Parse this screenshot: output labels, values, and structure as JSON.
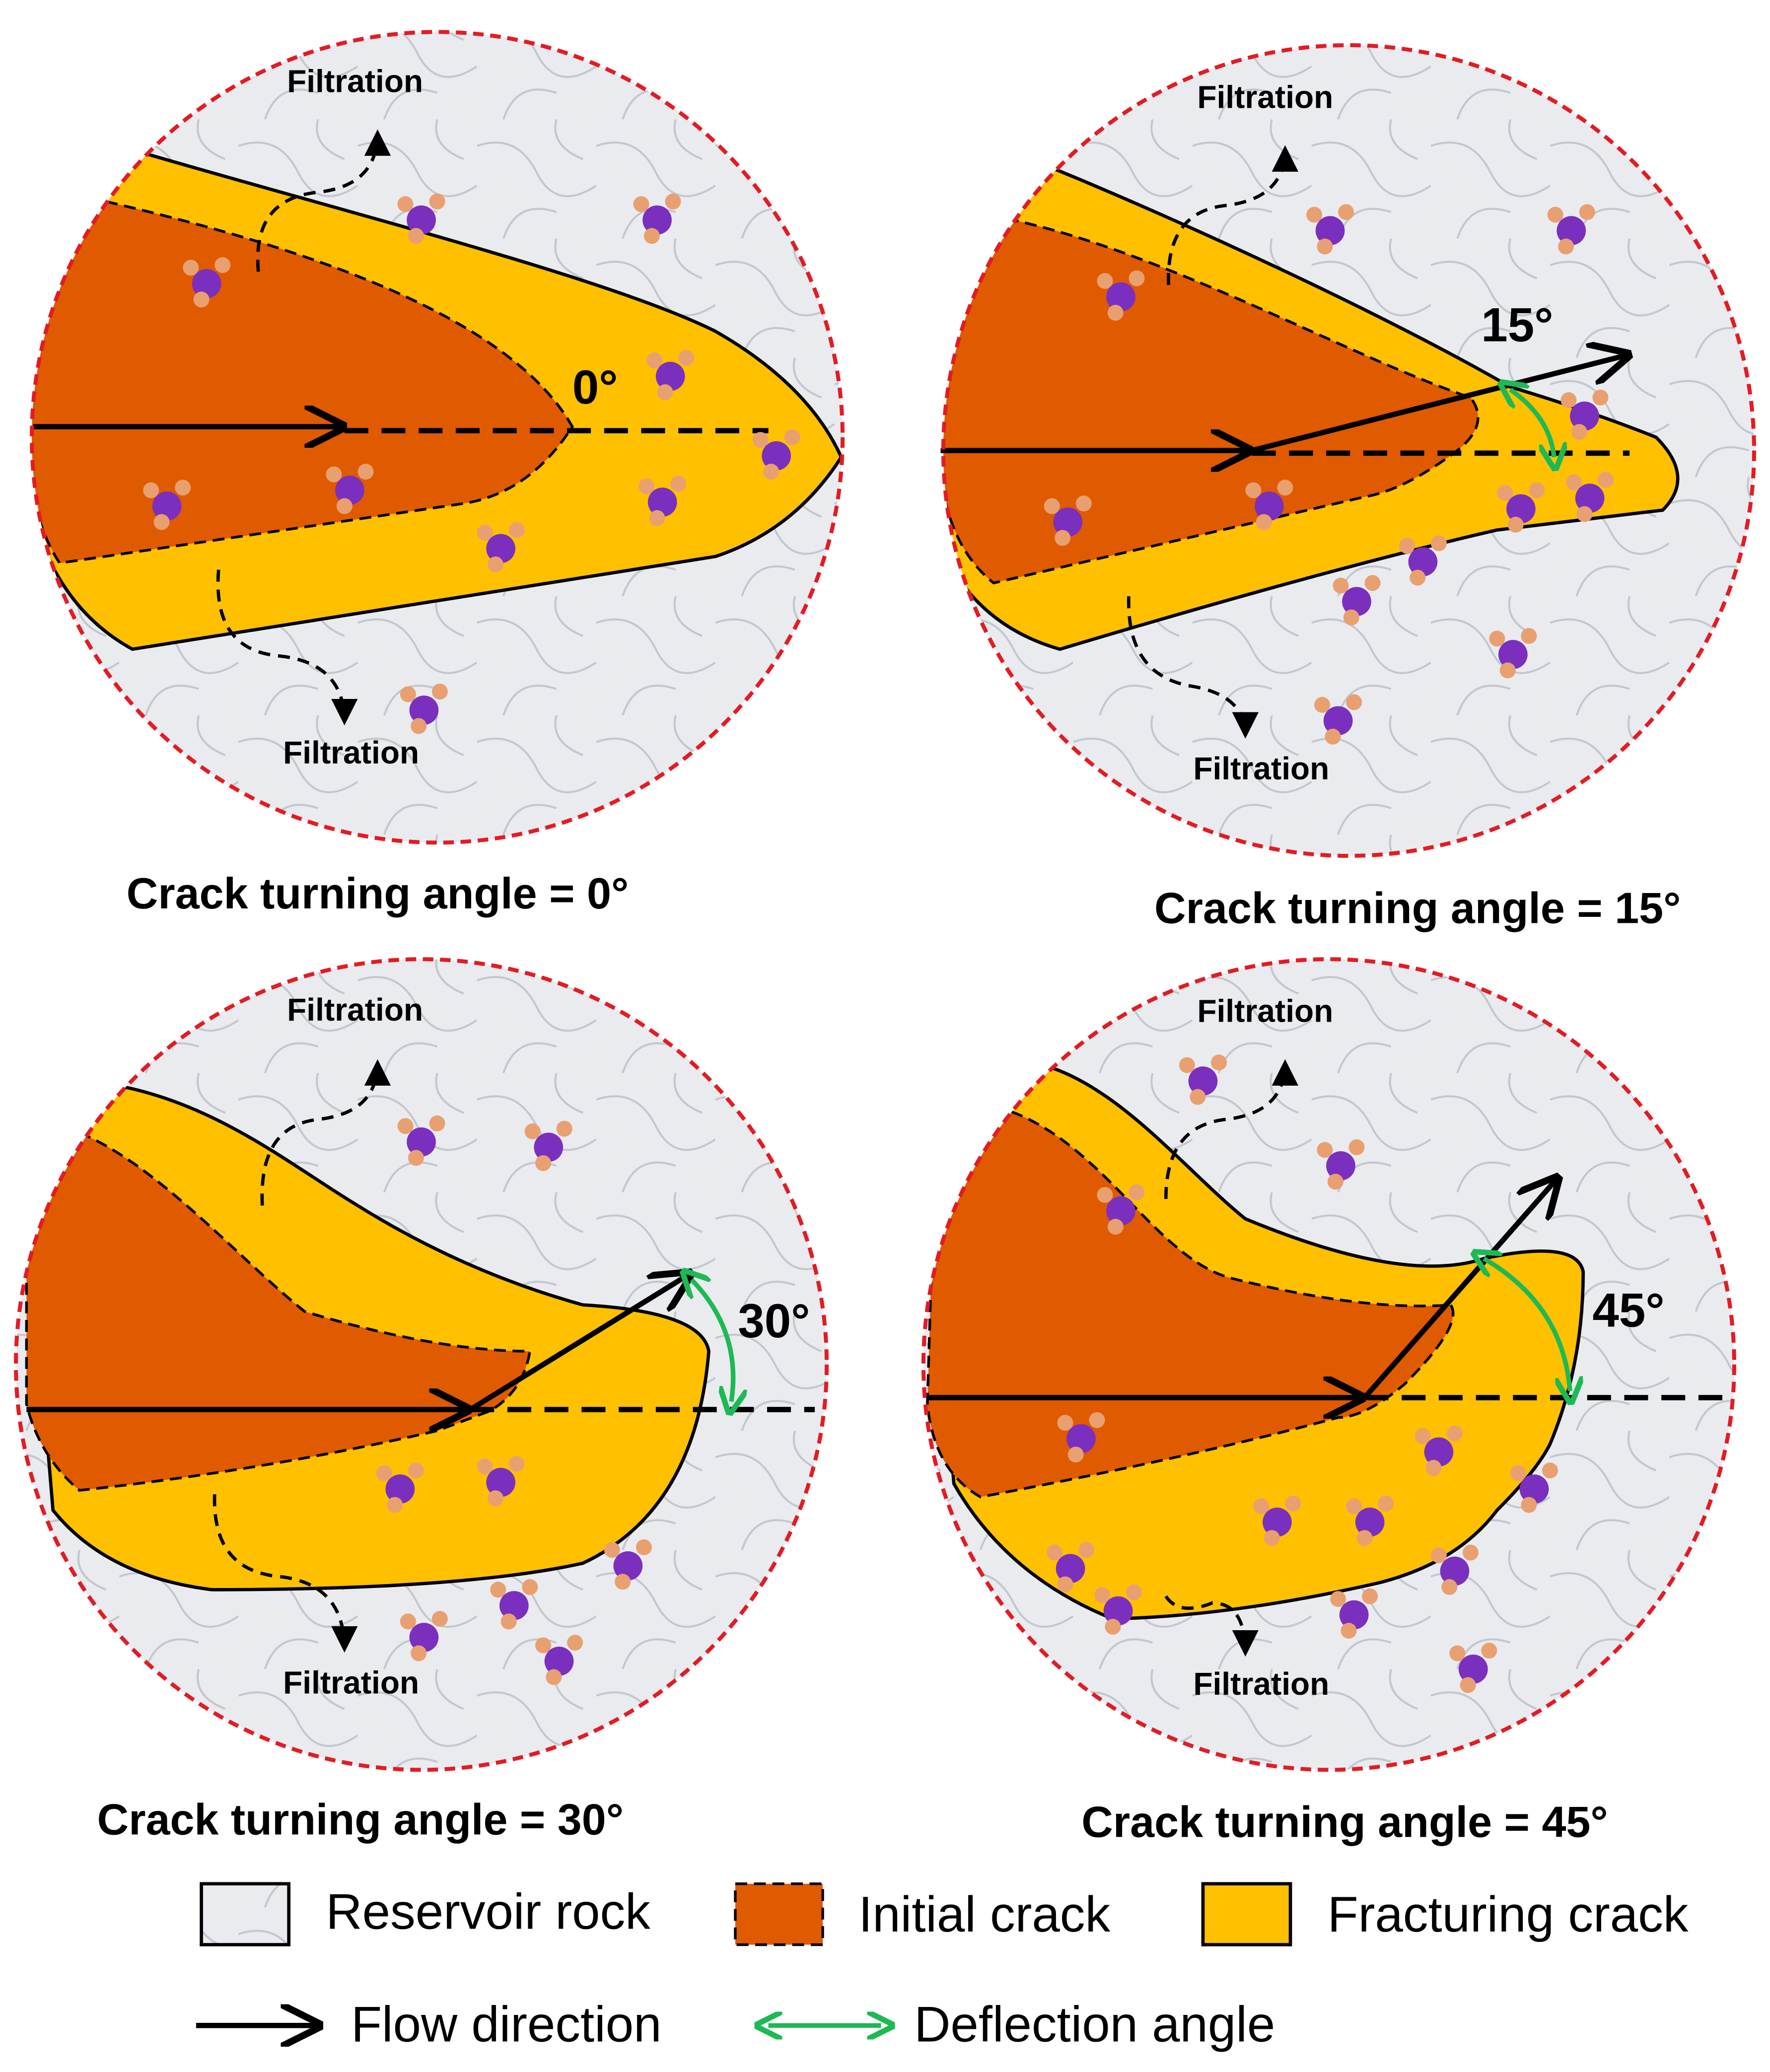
{
  "panels": [
    {
      "top_label": "Filtration",
      "bottom_label": "Filtration",
      "angle_label": "0°",
      "caption": "Crack turning angle = 0°"
    },
    {
      "top_label": "Filtration",
      "bottom_label": "Filtration",
      "angle_label": "15°",
      "caption": "Crack turning angle = 15°"
    },
    {
      "top_label": "Filtration",
      "bottom_label": "Filtration",
      "angle_label": "30°",
      "caption": "Crack turning angle = 30°"
    },
    {
      "top_label": "Filtration",
      "bottom_label": "Filtration",
      "angle_label": "45°",
      "caption": "Crack turning angle = 45°"
    }
  ],
  "legend": [
    "Reservoir rock",
    "Initial crack",
    "Fracturing crack",
    "Flow direction",
    "Deflection angle"
  ]
}
